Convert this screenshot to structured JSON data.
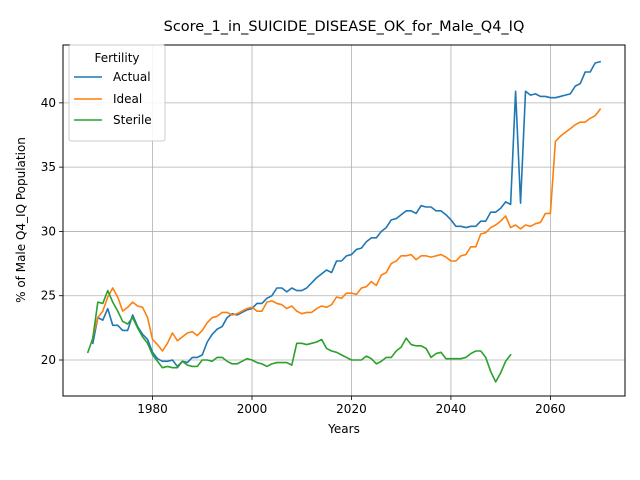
{
  "chart_data": {
    "type": "line",
    "title": "Score_1_in_SUICIDE_DISEASE_OK_for_Male_Q4_IQ",
    "xlabel": "Years",
    "ylabel": "% of Male Q4_IQ Population",
    "xlim": [
      1962,
      2075
    ],
    "ylim": [
      17.2,
      44.5
    ],
    "xticks": [
      1980,
      2000,
      2020,
      2040,
      2060
    ],
    "yticks": [
      20,
      25,
      30,
      35,
      40
    ],
    "grid": true,
    "legend": {
      "title": "Fertility",
      "placement": "top-left"
    },
    "series": [
      {
        "name": "Actual",
        "color": "#1f77b4",
        "x": [
          1968,
          1969,
          1970,
          1971,
          1972,
          1973,
          1974,
          1975,
          1976,
          1977,
          1978,
          1979,
          1980,
          1981,
          1982,
          1983,
          1984,
          1985,
          1986,
          1987,
          1988,
          1989,
          1990,
          1991,
          1992,
          1993,
          1994,
          1995,
          1996,
          1997,
          1998,
          1999,
          2000,
          2001,
          2002,
          2003,
          2004,
          2005,
          2006,
          2007,
          2008,
          2009,
          2010,
          2011,
          2012,
          2013,
          2014,
          2015,
          2016,
          2017,
          2018,
          2019,
          2020,
          2021,
          2022,
          2023,
          2024,
          2025,
          2026,
          2027,
          2028,
          2029,
          2030,
          2031,
          2032,
          2033,
          2034,
          2035,
          2036,
          2037,
          2038,
          2039,
          2040,
          2041,
          2042,
          2043,
          2044,
          2045,
          2046,
          2047,
          2048,
          2049,
          2050,
          2051,
          2052,
          2052.5,
          2053,
          2054,
          2055,
          2056,
          2057,
          2058,
          2059,
          2060,
          2061,
          2062,
          2063,
          2064,
          2065,
          2066,
          2067,
          2068,
          2069,
          2070
        ],
        "values": [
          21.3,
          23.3,
          23.1,
          24.0,
          22.7,
          22.7,
          22.3,
          22.3,
          23.5,
          22.6,
          22.0,
          21.6,
          20.6,
          20.1,
          19.9,
          19.9,
          20.0,
          19.5,
          19.9,
          19.8,
          20.2,
          20.2,
          20.4,
          21.4,
          22.0,
          22.4,
          22.6,
          23.3,
          23.6,
          23.5,
          23.7,
          23.9,
          24.0,
          24.4,
          24.4,
          24.8,
          25.0,
          25.6,
          25.6,
          25.3,
          25.6,
          25.4,
          25.4,
          25.6,
          26.0,
          26.4,
          26.7,
          27.0,
          26.8,
          27.7,
          27.7,
          28.1,
          28.2,
          28.6,
          28.7,
          29.2,
          29.5,
          29.5,
          30.0,
          30.3,
          30.9,
          31.0,
          31.3,
          31.6,
          31.6,
          31.4,
          32.0,
          31.9,
          31.9,
          31.6,
          31.6,
          31.3,
          30.9,
          30.4,
          30.4,
          30.3,
          30.4,
          30.4,
          30.8,
          30.8,
          31.5,
          31.5,
          31.8,
          32.3,
          32.1,
          36.5,
          40.9,
          32.2,
          40.9,
          40.6,
          40.7,
          40.5,
          40.5,
          40.4,
          40.4,
          40.5,
          40.6,
          40.7,
          41.3,
          41.5,
          42.4,
          42.4,
          43.1,
          43.2
        ]
      },
      {
        "name": "Ideal",
        "color": "#ff7f0e",
        "x": [
          1968,
          1969,
          1970,
          1971,
          1972,
          1973,
          1974,
          1975,
          1976,
          1977,
          1978,
          1979,
          1980,
          1981,
          1982,
          1983,
          1984,
          1985,
          1986,
          1987,
          1988,
          1989,
          1990,
          1991,
          1992,
          1993,
          1994,
          1995,
          1996,
          1997,
          1998,
          1999,
          2000,
          2001,
          2002,
          2003,
          2004,
          2005,
          2006,
          2007,
          2008,
          2009,
          2010,
          2011,
          2012,
          2013,
          2014,
          2015,
          2016,
          2017,
          2018,
          2019,
          2020,
          2021,
          2022,
          2023,
          2024,
          2025,
          2026,
          2027,
          2028,
          2029,
          2030,
          2031,
          2032,
          2033,
          2034,
          2035,
          2036,
          2037,
          2038,
          2039,
          2040,
          2041,
          2042,
          2043,
          2044,
          2045,
          2046,
          2047,
          2048,
          2049,
          2050,
          2051,
          2052,
          2053,
          2054,
          2055,
          2056,
          2057,
          2058,
          2059,
          2060,
          2061,
          2062,
          2063,
          2064,
          2065,
          2066,
          2067,
          2068,
          2069,
          2070
        ],
        "values": [
          21.8,
          23.3,
          23.8,
          24.9,
          25.6,
          24.9,
          23.8,
          24.1,
          24.5,
          24.2,
          24.1,
          23.3,
          21.6,
          21.2,
          20.7,
          21.3,
          22.1,
          21.5,
          21.8,
          22.1,
          22.2,
          21.9,
          22.3,
          22.9,
          23.3,
          23.4,
          23.7,
          23.7,
          23.5,
          23.6,
          23.8,
          24.0,
          24.1,
          23.8,
          23.8,
          24.5,
          24.6,
          24.4,
          24.3,
          24.0,
          24.2,
          23.8,
          23.6,
          23.7,
          23.7,
          24.0,
          24.2,
          24.1,
          24.3,
          24.9,
          24.8,
          25.2,
          25.2,
          25.1,
          25.6,
          25.7,
          26.1,
          25.8,
          26.6,
          26.8,
          27.5,
          27.7,
          28.1,
          28.1,
          28.2,
          27.8,
          28.1,
          28.1,
          28.0,
          28.1,
          28.2,
          28.0,
          27.7,
          27.7,
          28.1,
          28.2,
          28.8,
          28.8,
          29.8,
          29.9,
          30.3,
          30.5,
          30.8,
          31.2,
          30.3,
          30.5,
          30.2,
          30.5,
          30.4,
          30.6,
          30.7,
          31.4,
          31.4,
          37.0,
          37.4,
          37.7,
          38.0,
          38.3,
          38.5,
          38.5,
          38.8,
          39.0,
          39.5
        ]
      },
      {
        "name": "Sterile",
        "color": "#2ca02c",
        "x": [
          1967,
          1968,
          1969,
          1970,
          1971,
          1972,
          1973,
          1974,
          1975,
          1976,
          1977,
          1978,
          1979,
          1980,
          1981,
          1982,
          1983,
          1984,
          1985,
          1986,
          1987,
          1988,
          1989,
          1990,
          1991,
          1992,
          1993,
          1994,
          1995,
          1996,
          1997,
          1998,
          1999,
          2000,
          2001,
          2002,
          2003,
          2004,
          2005,
          2006,
          2007,
          2008,
          2009,
          2010,
          2011,
          2012,
          2013,
          2014,
          2015,
          2016,
          2017,
          2018,
          2019,
          2020,
          2021,
          2022,
          2023,
          2024,
          2025,
          2026,
          2027,
          2028,
          2029,
          2030,
          2031,
          2032,
          2033,
          2034,
          2035,
          2036,
          2037,
          2038,
          2039,
          2040,
          2041,
          2042,
          2043,
          2044,
          2045,
          2046,
          2047,
          2048,
          2049,
          2050,
          2051,
          2052
        ],
        "values": [
          20.6,
          21.7,
          24.5,
          24.4,
          25.4,
          24.5,
          23.8,
          23.0,
          22.8,
          23.3,
          22.5,
          21.8,
          21.3,
          20.4,
          19.9,
          19.4,
          19.5,
          19.4,
          19.4,
          19.9,
          19.6,
          19.5,
          19.5,
          20.0,
          20.0,
          19.9,
          20.2,
          20.2,
          19.9,
          19.7,
          19.7,
          19.9,
          20.1,
          20.0,
          19.8,
          19.7,
          19.5,
          19.7,
          19.8,
          19.8,
          19.8,
          19.6,
          21.3,
          21.3,
          21.2,
          21.3,
          21.4,
          21.6,
          20.9,
          20.7,
          20.6,
          20.4,
          20.2,
          20.0,
          20.0,
          20.0,
          20.3,
          20.1,
          19.7,
          19.9,
          20.2,
          20.2,
          20.7,
          21.0,
          21.7,
          21.2,
          21.1,
          21.1,
          20.9,
          20.2,
          20.5,
          20.6,
          20.1,
          20.1,
          20.1,
          20.1,
          20.2,
          20.5,
          20.7,
          20.7,
          20.2,
          19.1,
          18.3,
          19.0,
          19.9,
          20.4
        ]
      }
    ]
  }
}
